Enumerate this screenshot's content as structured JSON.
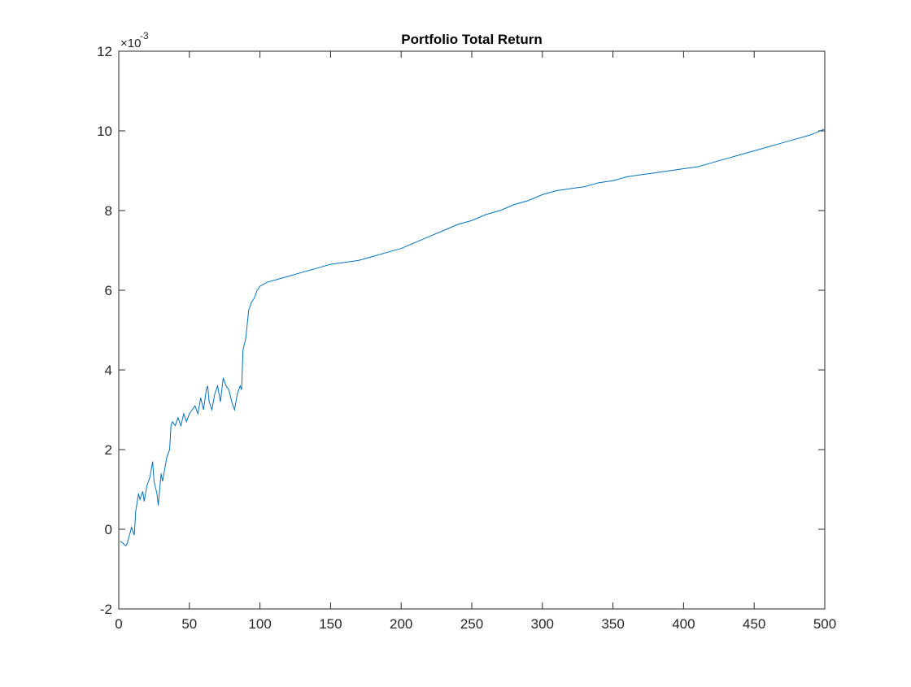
{
  "chart_data": {
    "type": "line",
    "title": "Portfolio Total Return",
    "xlabel": "",
    "ylabel": "",
    "exponent_base": "×10",
    "exponent_power": "-3",
    "xlim": [
      0,
      500
    ],
    "ylim": [
      -2,
      12
    ],
    "xticks": [
      0,
      50,
      100,
      150,
      200,
      250,
      300,
      350,
      400,
      450,
      500
    ],
    "yticks": [
      -2,
      0,
      2,
      4,
      6,
      8,
      10,
      12
    ],
    "grid": false,
    "legend": "none",
    "line_color": "#0072BD",
    "series": [
      {
        "x": [
          1,
          3,
          5,
          6,
          8,
          9,
          11,
          12,
          14,
          15,
          17,
          18,
          20,
          22,
          24,
          25,
          27,
          28,
          30,
          31,
          33,
          34,
          36,
          37,
          38,
          40,
          42,
          44,
          46,
          48,
          50,
          52,
          54,
          56,
          58,
          60,
          62,
          63,
          64,
          66,
          68,
          70,
          72,
          74,
          76,
          78,
          80,
          82,
          84,
          86,
          87,
          88,
          90,
          92,
          94,
          96,
          98,
          100,
          105,
          110,
          120,
          130,
          140,
          150,
          160,
          170,
          180,
          190,
          200,
          210,
          220,
          230,
          240,
          250,
          260,
          270,
          280,
          290,
          300,
          310,
          320,
          330,
          340,
          350,
          360,
          370,
          380,
          390,
          400,
          410,
          420,
          430,
          440,
          450,
          460,
          470,
          480,
          490,
          500
        ],
        "y": [
          -0.3,
          -0.35,
          -0.42,
          -0.35,
          -0.1,
          0.05,
          -0.15,
          0.45,
          0.9,
          0.75,
          0.95,
          0.7,
          1.1,
          1.3,
          1.7,
          1.2,
          0.9,
          0.6,
          1.4,
          1.2,
          1.6,
          1.8,
          2.0,
          2.6,
          2.7,
          2.6,
          2.8,
          2.6,
          2.9,
          2.7,
          2.9,
          3.0,
          3.1,
          2.9,
          3.3,
          3.0,
          3.5,
          3.6,
          3.2,
          3.0,
          3.4,
          3.6,
          3.2,
          3.8,
          3.6,
          3.5,
          3.2,
          3.0,
          3.4,
          3.6,
          3.5,
          4.5,
          4.8,
          5.5,
          5.7,
          5.8,
          6.0,
          6.1,
          6.2,
          6.25,
          6.35,
          6.45,
          6.55,
          6.65,
          6.7,
          6.75,
          6.85,
          6.95,
          7.05,
          7.2,
          7.35,
          7.5,
          7.65,
          7.75,
          7.9,
          8.0,
          8.15,
          8.25,
          8.4,
          8.5,
          8.55,
          8.6,
          8.7,
          8.75,
          8.85,
          8.9,
          8.95,
          9.0,
          9.05,
          9.1,
          9.2,
          9.3,
          9.4,
          9.5,
          9.6,
          9.7,
          9.8,
          9.9,
          10.05
        ]
      }
    ]
  }
}
